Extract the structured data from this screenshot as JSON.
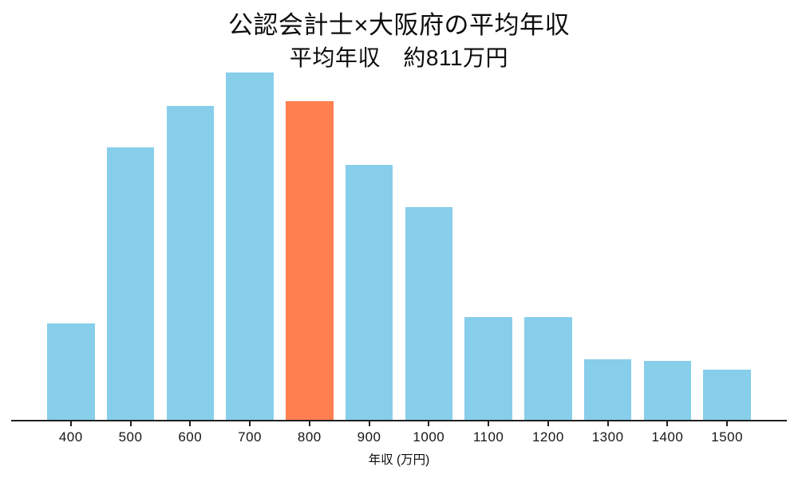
{
  "chart_data": {
    "type": "bar",
    "title": "公認会計士×大阪府の平均年収",
    "subtitle": "平均年収　約811万円",
    "xlabel": "年収 (万円)",
    "ylabel": "",
    "categories": [
      "400",
      "500",
      "600",
      "700",
      "800",
      "900",
      "1000",
      "1100",
      "1200",
      "1300",
      "1400",
      "1500"
    ],
    "values": [
      4.4,
      12.4,
      14.3,
      15.8,
      14.5,
      11.6,
      9.7,
      4.7,
      4.7,
      2.8,
      2.7,
      2.3
    ],
    "ylim": [
      0,
      16.2
    ],
    "y_axis_visible": false,
    "grid": false,
    "legend": false,
    "highlight": {
      "category": "800",
      "color": "#FF7F50"
    },
    "colors": {
      "bar": "#87CEEB",
      "highlight": "#FF7F50",
      "axis": "#1f1f1f",
      "text": "#0d0d0d"
    }
  }
}
